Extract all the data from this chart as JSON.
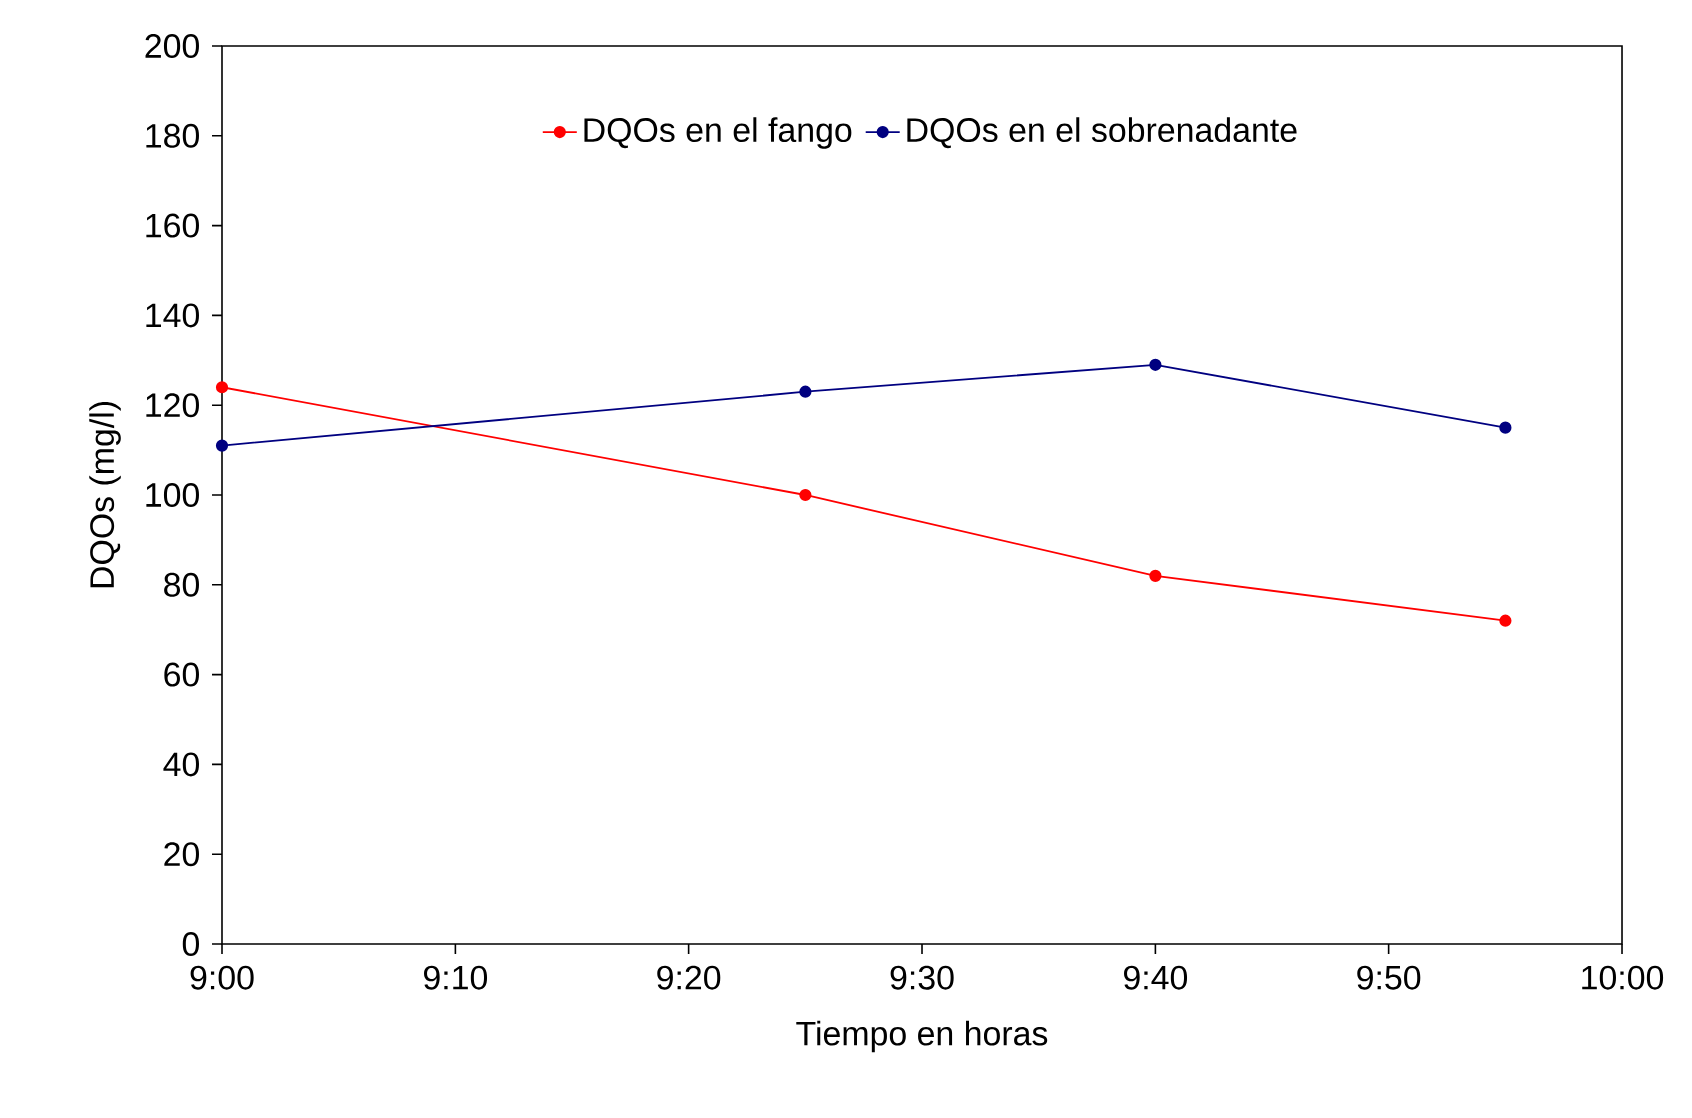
{
  "chart_data": {
    "type": "line",
    "xlabel": "Tiempo en horas",
    "ylabel": "DQOs (mg/l)",
    "series": [
      {
        "name": "DQOs en el fango",
        "color": "#ff0000",
        "x": [
          9,
          9.4167,
          9.6667,
          9.9167
        ],
        "values": [
          124,
          100,
          82,
          72
        ]
      },
      {
        "name": "DQOs en el sobrenadante",
        "color": "#000080",
        "x": [
          9,
          9.4167,
          9.6667,
          9.9167
        ],
        "values": [
          111,
          123,
          129,
          115
        ]
      }
    ],
    "xlim": [
      9,
      10
    ],
    "xticks": [
      {
        "value": 9,
        "label": "9:00"
      },
      {
        "value": 9.1667,
        "label": "9:10"
      },
      {
        "value": 9.3333,
        "label": "9:20"
      },
      {
        "value": 9.5,
        "label": "9:30"
      },
      {
        "value": 9.6667,
        "label": "9:40"
      },
      {
        "value": 9.8333,
        "label": "9:50"
      },
      {
        "value": 10,
        "label": "10:00"
      }
    ],
    "ylim": [
      0,
      200
    ],
    "yticks": [
      0,
      20,
      40,
      60,
      80,
      100,
      120,
      140,
      160,
      180,
      200
    ],
    "grid": false,
    "legend": "top",
    "marker": "circle",
    "line_style": "solid"
  }
}
